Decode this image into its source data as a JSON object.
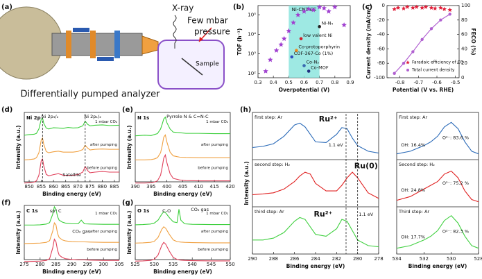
{
  "panel_labels": [
    "(a)",
    "(b)",
    "(c)",
    "(d)",
    "(e)",
    "(f)",
    "(g)",
    "(h)"
  ],
  "diagram": {
    "texts": [
      "X-ray",
      "Few mbar",
      "pressure",
      "Sample",
      "Differentially pumped analyzer"
    ]
  },
  "chart_data": [
    {
      "type": "scatter",
      "xlabel": "Overpotential (V)",
      "ylabel": "TOF (h⁻¹)",
      "xlim": [
        0.3,
        0.9
      ],
      "xticks": [
        0.3,
        0.4,
        0.5,
        0.6,
        0.7,
        0.8,
        0.9
      ],
      "ylim": [
        60,
        300000
      ],
      "log_y": true,
      "yticks": [
        {
          "value": 100,
          "label": "10²"
        },
        {
          "value": 1000,
          "label": "10³"
        },
        {
          "value": 10000,
          "label": "10⁴"
        },
        {
          "value": 100000,
          "label": "10⁵"
        }
      ],
      "region": {
        "x": [
          0.5,
          0.7
        ],
        "label": "Ni-CNT-CC",
        "color": "#86e3dc"
      },
      "series": [
        {
          "marker": "star",
          "color": "#a040d0",
          "x": [
            0.35,
            0.38,
            0.42,
            0.45,
            0.47,
            0.5,
            0.53,
            0.56,
            0.6,
            0.63,
            0.66,
            0.7,
            0.73,
            0.76,
            0.8,
            0.86
          ],
          "values": [
            130,
            500,
            1500,
            3000,
            6000,
            15000,
            40000,
            100000,
            150000,
            200000,
            180000,
            250000,
            220000,
            150000,
            250000,
            30000
          ]
        }
      ],
      "points": [
        {
          "label": "Ni-N₄",
          "x": 0.7,
          "y": 25000,
          "color": "#222222"
        },
        {
          "label": "low valent Ni",
          "x": 0.58,
          "y": 6000,
          "color": "#d0202a"
        },
        {
          "label": "Co-protoporphyrin",
          "x": 0.55,
          "y": 1500,
          "color": "#f08a1a"
        },
        {
          "label": "COF-367-Co (1%)",
          "x": 0.52,
          "y": 700,
          "color": "#3050c0"
        },
        {
          "label": "Co-N₅",
          "x": 0.6,
          "y": 250,
          "color": "#3a6ab0"
        },
        {
          "label": "Co-MOF",
          "x": 0.63,
          "y": 130,
          "color": "#203080"
        }
      ]
    },
    {
      "type": "line",
      "xlabel": "Potential (V vs. RHE)",
      "ylabel": "Current density (mA/cm²)",
      "y2label": "FECO (%)",
      "xlim": [
        -0.87,
        -0.48
      ],
      "xticks": [
        -0.8,
        -0.7,
        -0.6,
        -0.5
      ],
      "ylim": [
        -100,
        0
      ],
      "yticks": [
        -100,
        -80,
        -60,
        -40,
        -20,
        0
      ],
      "y2lim": [
        0,
        100
      ],
      "y2ticks": [
        0,
        20,
        40,
        60,
        80,
        100
      ],
      "legend": "lower right",
      "series": [
        {
          "name": "Faradaic efficiency of CO",
          "color": "#e0203a",
          "marker": "star",
          "axis": "y2",
          "x": [
            -0.83,
            -0.81,
            -0.78,
            -0.76,
            -0.73,
            -0.71,
            -0.68,
            -0.66,
            -0.63,
            -0.61,
            -0.58,
            -0.56,
            -0.53
          ],
          "values": [
            95,
            97,
            96,
            98,
            97,
            98,
            97,
            98,
            97,
            96,
            97,
            95,
            94
          ]
        },
        {
          "name": "Total current density",
          "color": "#b060d0",
          "marker": "circle",
          "x": [
            -0.83,
            -0.78,
            -0.73,
            -0.68,
            -0.63,
            -0.58,
            -0.53
          ],
          "values": [
            -94,
            -80,
            -64,
            -47,
            -32,
            -20,
            -12
          ]
        }
      ]
    },
    {
      "type": "line",
      "layout": "stacked",
      "title": "Ni 2p",
      "xlabel": "Binding energy (eV)",
      "ylabel": "Intensity (a.u.)",
      "xlim": [
        848,
        887
      ],
      "xticks": [
        850,
        855,
        860,
        865,
        870,
        875,
        880,
        885
      ],
      "ylim": [
        0,
        1
      ],
      "vlines": [
        855.5,
        873
      ],
      "annotations": [
        "Ni 2p₃/₂",
        "Ni 2p₁/₂",
        "Satellite"
      ],
      "x": [
        848,
        850,
        852,
        853,
        854,
        855,
        855.5,
        856,
        857,
        858,
        860,
        862,
        864,
        866,
        868,
        870,
        872,
        873,
        874,
        875,
        877,
        880,
        883,
        887
      ],
      "series": [
        {
          "name": "1 mbar CO₂",
          "color": "#3ccf3c",
          "values": [
            0.1,
            0.12,
            0.13,
            0.16,
            0.3,
            0.62,
            0.65,
            0.48,
            0.33,
            0.3,
            0.34,
            0.33,
            0.32,
            0.35,
            0.33,
            0.34,
            0.4,
            0.55,
            0.45,
            0.4,
            0.42,
            0.43,
            0.41,
            0.42
          ]
        },
        {
          "name": "after pumping",
          "color": "#f0a040",
          "values": [
            0.05,
            0.06,
            0.08,
            0.12,
            0.28,
            0.7,
            0.75,
            0.55,
            0.32,
            0.28,
            0.31,
            0.33,
            0.3,
            0.3,
            0.3,
            0.32,
            0.38,
            0.52,
            0.43,
            0.37,
            0.39,
            0.4,
            0.39,
            0.39
          ]
        },
        {
          "name": "before pumping",
          "color": "#e0405a",
          "values": [
            0.05,
            0.06,
            0.08,
            0.12,
            0.3,
            0.78,
            0.82,
            0.6,
            0.33,
            0.28,
            0.32,
            0.35,
            0.3,
            0.3,
            0.3,
            0.32,
            0.4,
            0.58,
            0.45,
            0.38,
            0.4,
            0.42,
            0.4,
            0.4
          ]
        }
      ]
    },
    {
      "type": "line",
      "layout": "stacked",
      "title": "N 1s",
      "xlabel": "Binding energy (eV)",
      "ylabel": "Intensity (a.u.)",
      "xlim": [
        390,
        420
      ],
      "xticks": [
        390,
        395,
        400,
        405,
        410,
        415,
        420
      ],
      "ylim": [
        0,
        1
      ],
      "annotations": [
        "Pyrrole N & C=N-C"
      ],
      "x": [
        390,
        393,
        395,
        396,
        397,
        398,
        398.5,
        399,
        399.5,
        400,
        401,
        402,
        404,
        406,
        410,
        415,
        420
      ],
      "series": [
        {
          "name": "1 mbar CO₂",
          "color": "#3ccf3c",
          "values": [
            0.08,
            0.1,
            0.09,
            0.12,
            0.15,
            0.3,
            0.45,
            0.62,
            0.68,
            0.5,
            0.3,
            0.2,
            0.18,
            0.16,
            0.16,
            0.15,
            0.15
          ]
        },
        {
          "name": "after pumping",
          "color": "#f0a040",
          "values": [
            0.05,
            0.05,
            0.06,
            0.08,
            0.12,
            0.28,
            0.5,
            0.78,
            0.85,
            0.62,
            0.3,
            0.18,
            0.14,
            0.13,
            0.12,
            0.12,
            0.12
          ]
        },
        {
          "name": "before pumping",
          "color": "#e0405a",
          "values": [
            0.05,
            0.05,
            0.06,
            0.08,
            0.12,
            0.3,
            0.55,
            0.85,
            0.95,
            0.7,
            0.35,
            0.2,
            0.15,
            0.13,
            0.12,
            0.12,
            0.12
          ]
        }
      ]
    },
    {
      "type": "line",
      "layout": "stacked",
      "title": "C 1s",
      "xlabel": "Binding energy (eV)",
      "ylabel": "Intensity (a.u.)",
      "xlim": [
        275,
        305
      ],
      "xticks": [
        275,
        280,
        285,
        290,
        295,
        300,
        305
      ],
      "ylim": [
        0,
        1
      ],
      "annotations": [
        "sp³ C",
        "CO₂ gas"
      ],
      "x": [
        275,
        278,
        280,
        282,
        283,
        284,
        284.5,
        285,
        285.5,
        286,
        287,
        288,
        290,
        292,
        293,
        294,
        296,
        300,
        305
      ],
      "series": [
        {
          "name": "1 mbar CO₂",
          "color": "#3ccf3c",
          "values": [
            0.05,
            0.05,
            0.06,
            0.09,
            0.15,
            0.5,
            0.8,
            0.7,
            0.4,
            0.25,
            0.17,
            0.13,
            0.1,
            0.1,
            0.25,
            0.1,
            0.09,
            0.08,
            0.08
          ]
        },
        {
          "name": "after pumping",
          "color": "#f0a040",
          "values": [
            0.03,
            0.04,
            0.05,
            0.08,
            0.15,
            0.55,
            0.88,
            0.8,
            0.45,
            0.28,
            0.18,
            0.14,
            0.11,
            0.1,
            0.1,
            0.1,
            0.09,
            0.08,
            0.08
          ]
        },
        {
          "name": "before pumping",
          "color": "#e0405a",
          "values": [
            0.03,
            0.04,
            0.05,
            0.08,
            0.15,
            0.6,
            0.95,
            0.85,
            0.5,
            0.3,
            0.2,
            0.15,
            0.12,
            0.1,
            0.1,
            0.1,
            0.09,
            0.08,
            0.08
          ]
        }
      ]
    },
    {
      "type": "line",
      "layout": "stacked",
      "title": "O 1s",
      "xlabel": "Binding energy (eV)",
      "ylabel": "Intensity (a.u.)",
      "xlim": [
        525,
        550
      ],
      "xticks": [
        525,
        530,
        535,
        540,
        545,
        550
      ],
      "ylim": [
        0,
        1
      ],
      "annotations": [
        "C-O",
        "CO₂ gas"
      ],
      "x": [
        525,
        527,
        529,
        530,
        531,
        532,
        532.5,
        533,
        534,
        535,
        536,
        536.5,
        537,
        538,
        540,
        545,
        550
      ],
      "series": [
        {
          "name": "1 mbar CO₂",
          "color": "#3ccf3c",
          "values": [
            0.06,
            0.07,
            0.09,
            0.13,
            0.25,
            0.5,
            0.6,
            0.55,
            0.35,
            0.18,
            0.15,
            0.7,
            0.25,
            0.1,
            0.08,
            0.07,
            0.07
          ]
        },
        {
          "name": "after pumping",
          "color": "#f0a040",
          "values": [
            0.05,
            0.06,
            0.08,
            0.12,
            0.28,
            0.62,
            0.72,
            0.66,
            0.4,
            0.18,
            0.11,
            0.1,
            0.09,
            0.08,
            0.07,
            0.06,
            0.06
          ]
        },
        {
          "name": "before pumping",
          "color": "#e0405a",
          "values": [
            0.05,
            0.06,
            0.08,
            0.12,
            0.3,
            0.7,
            0.82,
            0.75,
            0.45,
            0.2,
            0.12,
            0.1,
            0.09,
            0.08,
            0.07,
            0.06,
            0.06
          ]
        }
      ]
    },
    {
      "type": "line",
      "layout": "panels",
      "xlabel": "Binding energy (eV)",
      "ylabel": "Intensity (a.u.)",
      "xlim": [
        290,
        278
      ],
      "xticks": [
        290,
        288,
        286,
        284,
        282,
        280,
        278
      ],
      "ylim": [
        0,
        1
      ],
      "vlines": [
        281.1,
        280.0
      ],
      "annotations": [
        "Ru²⁺",
        "1.1 eV",
        "Ru(0)",
        "Ru²⁺",
        "1.1 eV"
      ],
      "x": [
        290,
        289,
        288,
        287,
        286,
        285.5,
        285,
        284.5,
        284,
        283,
        282,
        281.5,
        281,
        280.5,
        280,
        279,
        278
      ],
      "series": [
        {
          "name": "first step: Ar",
          "color": "#2a6ab8",
          "values": [
            0.25,
            0.28,
            0.35,
            0.55,
            0.85,
            0.9,
            0.8,
            0.6,
            0.4,
            0.38,
            0.6,
            0.78,
            0.75,
            0.5,
            0.3,
            0.15,
            0.1
          ]
        },
        {
          "name": "second step: H₂",
          "color": "#e02020",
          "values": [
            0.25,
            0.27,
            0.3,
            0.4,
            0.6,
            0.75,
            0.85,
            0.8,
            0.55,
            0.35,
            0.35,
            0.5,
            0.7,
            0.85,
            0.7,
            0.3,
            0.15
          ]
        },
        {
          "name": "third step: Ar",
          "color": "#40d040",
          "values": [
            0.3,
            0.3,
            0.35,
            0.5,
            0.8,
            0.9,
            0.85,
            0.65,
            0.45,
            0.4,
            0.6,
            0.85,
            0.8,
            0.55,
            0.3,
            0.15,
            0.12
          ]
        }
      ]
    },
    {
      "type": "line",
      "layout": "panels",
      "xlabel": "Binding energy (eV)",
      "xlim": [
        534,
        528
      ],
      "xticks": [
        534,
        532,
        530,
        528
      ],
      "ylim": [
        0,
        1
      ],
      "annotations": [
        "OH: 16.4%",
        "O²⁻: 83.6 %",
        "OH: 24.8%",
        "O²⁻: 75.2 %",
        "OH: 17.7%",
        "O²⁻: 82.3 %"
      ],
      "x": [
        534,
        533,
        532,
        531.5,
        531,
        530.5,
        530,
        529.5,
        529,
        528.5,
        528
      ],
      "series": [
        {
          "name": "First step: Ar",
          "color": "#2a6ab8",
          "values": [
            0.08,
            0.15,
            0.3,
            0.4,
            0.55,
            0.8,
            0.92,
            0.75,
            0.4,
            0.15,
            0.08
          ]
        },
        {
          "name": "Second step: H₂",
          "color": "#e02020",
          "values": [
            0.1,
            0.2,
            0.4,
            0.5,
            0.6,
            0.8,
            0.88,
            0.7,
            0.35,
            0.12,
            0.06
          ]
        },
        {
          "name": "Third step: Ar",
          "color": "#40d040",
          "values": [
            0.08,
            0.15,
            0.3,
            0.4,
            0.55,
            0.82,
            0.95,
            0.75,
            0.4,
            0.15,
            0.08
          ]
        }
      ]
    }
  ]
}
